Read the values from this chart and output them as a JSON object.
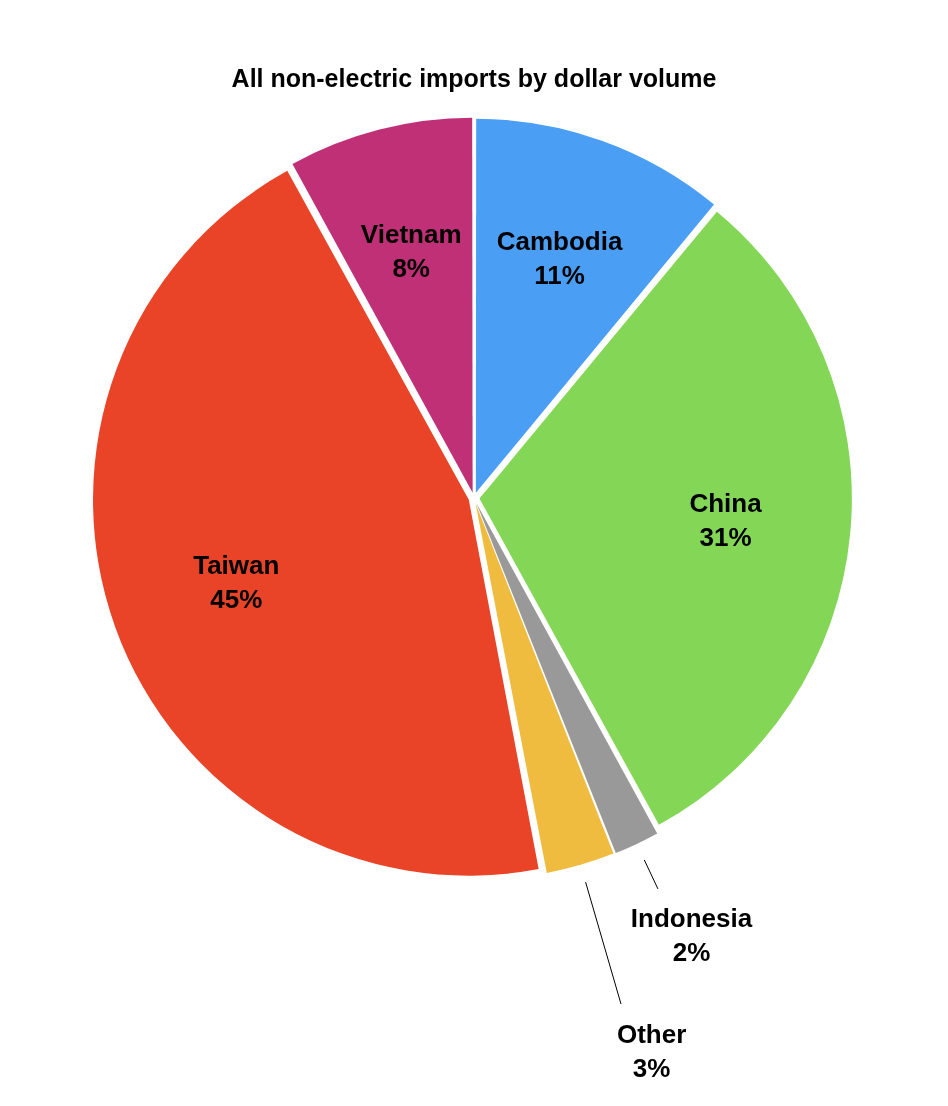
{
  "chart_data": {
    "type": "pie",
    "title": "All non-electric imports by dollar volume",
    "categories": [
      "Cambodia",
      "China",
      "Indonesia",
      "Other",
      "Taiwan",
      "Vietnam"
    ],
    "values": [
      11,
      31,
      2,
      3,
      45,
      8
    ],
    "value_labels": [
      "11%",
      "31%",
      "2%",
      "3%",
      "45%",
      "8%"
    ],
    "colors": [
      "#4a9ff5",
      "#84d656",
      "#999999",
      "#efbc40",
      "#e94428",
      "#c03077"
    ],
    "legend": false
  }
}
